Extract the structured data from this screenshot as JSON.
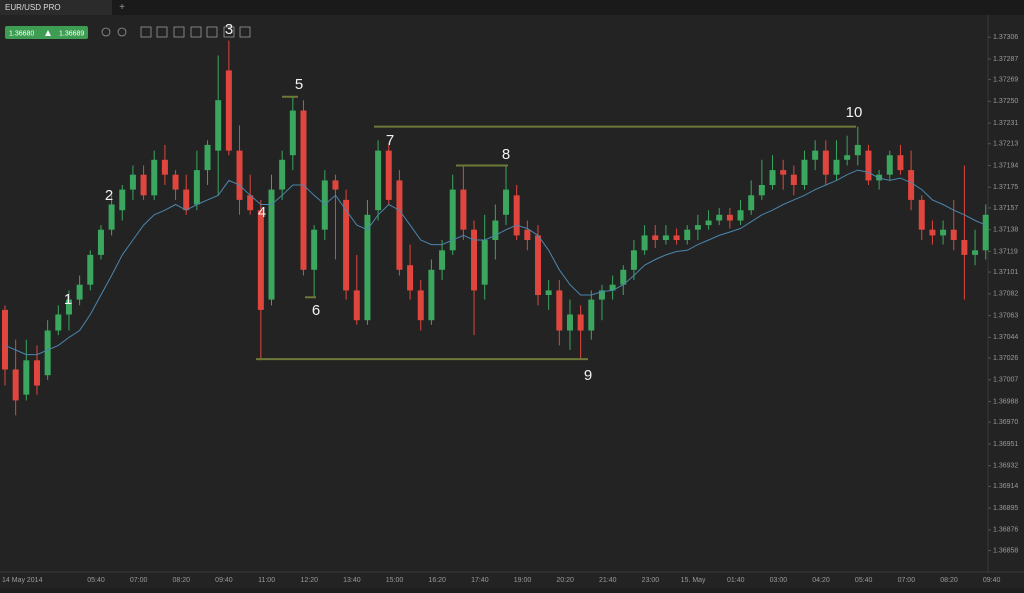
{
  "ui": {
    "tab": "EUR/USD PRO",
    "bid": "1.36680",
    "ask": "1.36689"
  },
  "chart_data": {
    "type": "candlestick",
    "up_color": "#3aa65e",
    "down_color": "#e0463d",
    "ma_color": "#4a86ad",
    "level_color": "#6e7838",
    "ylim": [
      1.36841,
      1.37321
    ],
    "yticks": [
      1.37306,
      1.37287,
      1.37269,
      {
        "value": 1.3725,
        "label": "1.37250"
      },
      1.37231,
      1.37213,
      1.37194,
      1.37175,
      1.37157,
      1.37138,
      1.37119,
      1.37101,
      1.37082,
      1.37063,
      1.37044,
      1.37026,
      1.37007,
      1.36988,
      {
        "value": 1.3697,
        "label": "1.36970"
      },
      1.36951,
      1.36932,
      1.36914,
      1.36895,
      1.36876,
      1.36858
    ],
    "x_labels": [
      "14 May 2014",
      "05:40",
      "07:00",
      "08:20",
      "09:40",
      "11:00",
      "12:20",
      "13:40",
      "15:00",
      "16:20",
      "17:40",
      "19:00",
      "20:20",
      "21:40",
      "23:00",
      "15. May",
      "01:40",
      "03:00",
      "04:20",
      "05:40",
      "07:00",
      "08:20",
      "09:40"
    ],
    "open": [
      1.37068,
      1.37016,
      1.36994,
      1.37024,
      1.37011,
      1.3705,
      1.37064,
      1.37077,
      1.3709,
      1.37116,
      1.37138,
      1.37155,
      1.37173,
      1.37186,
      1.37168,
      1.37199,
      1.37186,
      1.37173,
      1.3716,
      1.3719,
      1.37207,
      1.37277,
      1.37207,
      1.37168,
      1.37155,
      1.37077,
      1.37173,
      1.37203,
      1.37242,
      1.37103,
      1.37138,
      1.37181,
      1.37164,
      1.37085,
      1.37059,
      1.37155,
      1.37207,
      1.37181,
      1.37107,
      1.37085,
      1.37059,
      1.37103,
      1.3712,
      1.37173,
      1.37138,
      1.3709,
      1.37129,
      1.37151,
      1.37168,
      1.37138,
      1.37133,
      1.37081,
      1.37085,
      1.3705,
      1.37064,
      1.3705,
      1.37077,
      1.37085,
      1.3709,
      1.37103,
      1.3712,
      1.37133,
      1.37129,
      1.37133,
      1.37129,
      1.37138,
      1.37142,
      1.37146,
      1.37151,
      1.37146,
      1.37155,
      1.37168,
      1.37177,
      1.3719,
      1.37186,
      1.37177,
      1.37199,
      1.37207,
      1.37186,
      1.37199,
      1.37203,
      1.37207,
      1.37181,
      1.37186,
      1.37203,
      1.3719,
      1.37164,
      1.37138,
      1.37133,
      1.37138,
      1.37129,
      1.37116,
      1.3712
    ],
    "high": [
      1.37072,
      1.37042,
      1.37042,
      1.37037,
      1.37059,
      1.37072,
      1.37085,
      1.37098,
      1.3712,
      1.37142,
      1.37168,
      1.37177,
      1.37194,
      1.37194,
      1.37207,
      1.37212,
      1.3719,
      1.37186,
      1.37207,
      1.37216,
      1.3729,
      1.37303,
      1.37229,
      1.37186,
      1.37164,
      1.37186,
      1.37207,
      1.37254,
      1.37251,
      1.37142,
      1.3719,
      1.37186,
      1.37173,
      1.37116,
      1.37164,
      1.37216,
      1.37212,
      1.3719,
      1.37125,
      1.37094,
      1.37112,
      1.37129,
      1.37186,
      1.37194,
      1.37146,
      1.37151,
      1.3716,
      1.37194,
      1.37177,
      1.37146,
      1.37142,
      1.37094,
      1.37094,
      1.37077,
      1.37072,
      1.37085,
      1.3709,
      1.37098,
      1.37107,
      1.37129,
      1.37142,
      1.37142,
      1.37142,
      1.37139,
      1.37142,
      1.37151,
      1.37155,
      1.37157,
      1.37157,
      1.37164,
      1.37181,
      1.37199,
      1.37203,
      1.37199,
      1.37194,
      1.37207,
      1.37216,
      1.37216,
      1.37216,
      1.3722,
      1.37228,
      1.37212,
      1.3719,
      1.37207,
      1.37212,
      1.37207,
      1.37168,
      1.37146,
      1.37146,
      1.37164,
      1.37194,
      1.37138,
      1.3716
    ],
    "low": [
      1.37002,
      1.36976,
      1.36989,
      1.36994,
      1.37007,
      1.37046,
      1.3705,
      1.37072,
      1.37085,
      1.37112,
      1.37133,
      1.37146,
      1.37164,
      1.37164,
      1.37164,
      1.37177,
      1.37164,
      1.37151,
      1.37155,
      1.37177,
      1.37168,
      1.37203,
      1.37151,
      1.37151,
      1.37024,
      1.37072,
      1.37164,
      1.3719,
      1.37098,
      1.37079,
      1.37129,
      1.37112,
      1.37077,
      1.37055,
      1.37055,
      1.37146,
      1.3716,
      1.37098,
      1.37077,
      1.3705,
      1.37055,
      1.37094,
      1.37116,
      1.37129,
      1.37046,
      1.37077,
      1.37112,
      1.37142,
      1.37129,
      1.3712,
      1.37072,
      1.37068,
      1.37037,
      1.37033,
      1.37025,
      1.37042,
      1.37059,
      1.37077,
      1.37081,
      1.37094,
      1.37116,
      1.37122,
      1.37125,
      1.37125,
      1.37125,
      1.37129,
      1.37138,
      1.37142,
      1.37139,
      1.37142,
      1.37151,
      1.37164,
      1.37173,
      1.37173,
      1.37168,
      1.37173,
      1.3719,
      1.37177,
      1.37181,
      1.37194,
      1.37194,
      1.37177,
      1.37173,
      1.37181,
      1.37186,
      1.37155,
      1.37129,
      1.37125,
      1.37125,
      1.3712,
      1.37077,
      1.37107,
      1.37112
    ],
    "close": [
      1.37016,
      1.36989,
      1.37024,
      1.37002,
      1.3705,
      1.37064,
      1.37077,
      1.3709,
      1.37116,
      1.37138,
      1.3716,
      1.37173,
      1.37186,
      1.37168,
      1.37199,
      1.37186,
      1.37173,
      1.37155,
      1.3719,
      1.37212,
      1.37251,
      1.37207,
      1.37164,
      1.37155,
      1.37068,
      1.37173,
      1.37199,
      1.37242,
      1.37103,
      1.37138,
      1.37181,
      1.37173,
      1.37085,
      1.37059,
      1.37151,
      1.37207,
      1.37164,
      1.37103,
      1.37085,
      1.37059,
      1.37103,
      1.3712,
      1.37173,
      1.37138,
      1.37085,
      1.37129,
      1.37146,
      1.37173,
      1.37133,
      1.37129,
      1.37081,
      1.37085,
      1.3705,
      1.37064,
      1.3705,
      1.37077,
      1.37085,
      1.3709,
      1.37103,
      1.3712,
      1.37133,
      1.37129,
      1.37133,
      1.37129,
      1.37138,
      1.37142,
      1.37146,
      1.37151,
      1.37146,
      1.37155,
      1.37168,
      1.37177,
      1.3719,
      1.37186,
      1.37177,
      1.37199,
      1.37207,
      1.37186,
      1.37199,
      1.37203,
      1.37212,
      1.37181,
      1.37186,
      1.37203,
      1.3719,
      1.37164,
      1.37138,
      1.37133,
      1.37138,
      1.37129,
      1.37116,
      1.3712,
      1.37151
    ],
    "ma": [
      1.37037,
      1.37033,
      1.37029,
      1.37029,
      1.37033,
      1.37037,
      1.37044,
      1.3705,
      1.37064,
      1.37081,
      1.37098,
      1.37116,
      1.37129,
      1.37142,
      1.37151,
      1.37155,
      1.3716,
      1.37155,
      1.3716,
      1.37164,
      1.37168,
      1.37181,
      1.37177,
      1.37168,
      1.3716,
      1.3716,
      1.37168,
      1.37177,
      1.37177,
      1.37168,
      1.3716,
      1.37168,
      1.37155,
      1.37142,
      1.37138,
      1.37151,
      1.3716,
      1.37155,
      1.37142,
      1.37129,
      1.37125,
      1.37125,
      1.37129,
      1.37133,
      1.37129,
      1.37129,
      1.37133,
      1.37138,
      1.37142,
      1.37139,
      1.37133,
      1.3712,
      1.37103,
      1.3709,
      1.37081,
      1.37081,
      1.37084,
      1.37085,
      1.3709,
      1.37098,
      1.37107,
      1.37112,
      1.37116,
      1.37119,
      1.3712,
      1.37125,
      1.37129,
      1.37133,
      1.37136,
      1.37139,
      1.37145,
      1.37151,
      1.37155,
      1.3716,
      1.37164,
      1.37168,
      1.37173,
      1.37177,
      1.37181,
      1.37186,
      1.3719,
      1.37188,
      1.37183,
      1.37181,
      1.37183,
      1.37179,
      1.37173,
      1.37164,
      1.3716,
      1.37155,
      1.37151,
      1.37146,
      1.37142
    ],
    "levels": [
      1.37254,
      1.37228,
      1.37194,
      1.37079,
      1.37025
    ],
    "annotations": [
      "1",
      "2",
      "3",
      "4",
      "5",
      "6",
      "7",
      "8",
      "9",
      "10"
    ]
  }
}
